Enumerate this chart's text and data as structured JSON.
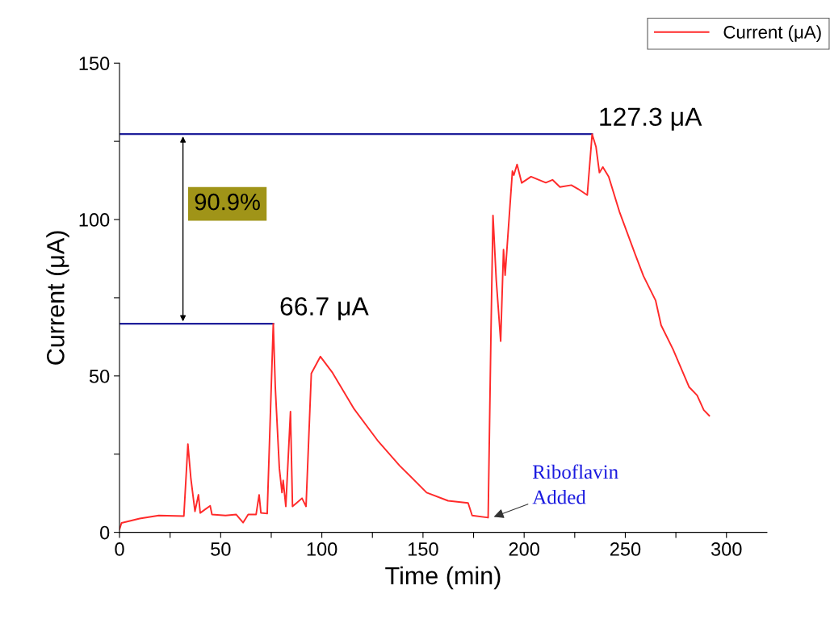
{
  "chart_data": {
    "type": "line",
    "xlabel": "Time (min)",
    "ylabel": "Current (μA)",
    "xlim": [
      0,
      320
    ],
    "ylim": [
      0,
      150
    ],
    "xticks": [
      0,
      {
        "value": 25,
        "label": null
      },
      50,
      {
        "value": 75,
        "label": null
      },
      100,
      {
        "value": 125,
        "label": null
      },
      150,
      {
        "value": 175,
        "label": null
      },
      200,
      {
        "value": 225,
        "label": null
      },
      250,
      {
        "value": 275,
        "label": null
      },
      300
    ],
    "yticks": [
      0,
      {
        "value": 25,
        "label": null
      },
      50,
      {
        "value": 75,
        "label": null
      },
      100,
      {
        "value": 125,
        "label": null
      },
      150
    ],
    "grid": false,
    "legend": "top right",
    "marker": "none",
    "line_style": "solid",
    "series": [
      {
        "name": "Current (μA)",
        "color": "#ff2a2a",
        "x": [
          0,
          1,
          10,
          19.4,
          31.8,
          33.8,
          35.3,
          37.3,
          39,
          39.9,
          44.8,
          45.7,
          52.4,
          57.7,
          61.1,
          63.6,
          67.5,
          69,
          69.9,
          73,
          76,
          77,
          79,
          80.3,
          80.9,
          82.2,
          84.5,
          85.5,
          87.4,
          90.2,
          92.2,
          94.8,
          99.3,
          105.3,
          116,
          128,
          138.5,
          151.8,
          162.4,
          172.3,
          174.3,
          182.2,
          183.6,
          184.6,
          186.2,
          188.4,
          189.8,
          190.6,
          194.2,
          194.9,
          196.5,
          198.8,
          203.4,
          210.7,
          214,
          217.7,
          223.3,
          226.6,
          231.2,
          233.6,
          235.5,
          237.2,
          238.9,
          241.8,
          247.1,
          255,
          259,
          265,
          267.7,
          273.6,
          281.6,
          285.5,
          288.8,
          291.5
        ],
        "values": [
          1,
          3,
          4.4,
          5.4,
          5.2,
          28.2,
          17,
          6.7,
          12,
          6.2,
          8.5,
          5.7,
          5.4,
          5.7,
          3.1,
          5.7,
          5.7,
          12,
          6.2,
          6,
          66.7,
          46.4,
          20.5,
          12.7,
          16.6,
          8.3,
          38.6,
          8.3,
          9.3,
          10.9,
          8.3,
          50.8,
          56.2,
          51,
          39.4,
          29,
          21.3,
          12.7,
          10.1,
          9.4,
          5.4,
          4.7,
          63.7,
          101.3,
          80.8,
          61.1,
          90.4,
          82.2,
          115.5,
          114.2,
          117.6,
          111.7,
          113.7,
          111.8,
          112.7,
          110.4,
          111,
          109.8,
          107.8,
          127.3,
          123.3,
          115,
          116.8,
          113.7,
          102.5,
          88.7,
          81.9,
          74.1,
          66.2,
          58.5,
          46.4,
          43.8,
          39.1,
          37.3
        ]
      }
    ],
    "ref_lines": [
      {
        "axis": "y",
        "value": 127.3,
        "label": "127.3 μA",
        "color": "#1f1f9a",
        "line_style": "solid"
      },
      {
        "axis": "y",
        "value": 66.7,
        "label": "66.7 μA",
        "color": "#1f1f9a",
        "line_style": "solid"
      }
    ],
    "annotations": [
      "90.9%",
      {
        "text": "Riboflavin\nAdded",
        "x": 184,
        "y": 4.7
      }
    ]
  }
}
